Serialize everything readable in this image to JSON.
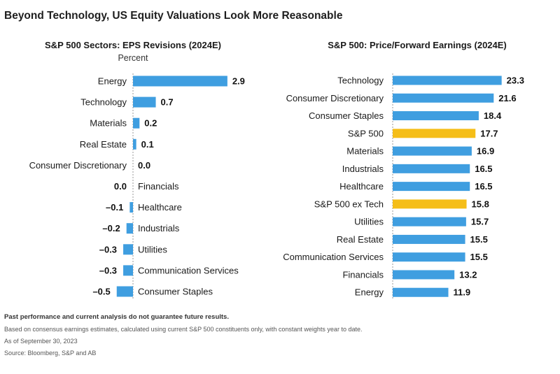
{
  "page_title": "Beyond Technology, US Equity Valuations Look More Reasonable",
  "colors": {
    "bar": "#3f9ee0",
    "highlight": "#f5be18",
    "text": "#1a1a1a"
  },
  "chart_data": [
    {
      "type": "bar",
      "orientation": "horizontal",
      "title": "S&P 500 Sectors: EPS Revisions (2024E)",
      "subtitle": "Percent",
      "value_format": "signed_1dp",
      "categories": [
        "Energy",
        "Technology",
        "Materials",
        "Real Estate",
        "Consumer Discretionary",
        "Financials",
        "Healthcare",
        "Industrials",
        "Utilities",
        "Communication Services",
        "Consumer Staples"
      ],
      "values": [
        2.9,
        0.7,
        0.2,
        0.1,
        0.0,
        0.0,
        -0.1,
        -0.2,
        -0.3,
        -0.3,
        -0.5
      ],
      "value_labels": [
        "2.9",
        "0.7",
        "0.2",
        "0.1",
        "0.0",
        "0.0",
        "–0.1",
        "–0.2",
        "–0.3",
        "–0.3",
        "–0.5"
      ],
      "highlight": []
    },
    {
      "type": "bar",
      "orientation": "horizontal",
      "title": "S&P 500: Price/Forward Earnings (2024E)",
      "subtitle": "",
      "categories": [
        "Technology",
        "Consumer Discretionary",
        "Consumer Staples",
        "S&P 500",
        "Materials",
        "Industrials",
        "Healthcare",
        "S&P 500 ex Tech",
        "Utilities",
        "Real Estate",
        "Communication Services",
        "Financials",
        "Energy"
      ],
      "values": [
        23.3,
        21.6,
        18.4,
        17.7,
        16.9,
        16.5,
        16.5,
        15.8,
        15.7,
        15.5,
        15.5,
        13.2,
        11.9
      ],
      "value_labels": [
        "23.3",
        "21.6",
        "18.4",
        "17.7",
        "16.9",
        "16.5",
        "16.5",
        "15.8",
        "15.7",
        "15.5",
        "15.5",
        "13.2",
        "11.9"
      ],
      "highlight": [
        "S&P 500",
        "S&P 500 ex Tech"
      ]
    }
  ],
  "footnotes": {
    "disclaimer": "Past performance and current analysis do not guarantee future results.",
    "basis": "Based on consensus earnings estimates, calculated using current S&P 500 constituents only, with constant weights year to date.",
    "as_of": "As of September 30, 2023",
    "source": "Source: Bloomberg, S&P and AB"
  }
}
